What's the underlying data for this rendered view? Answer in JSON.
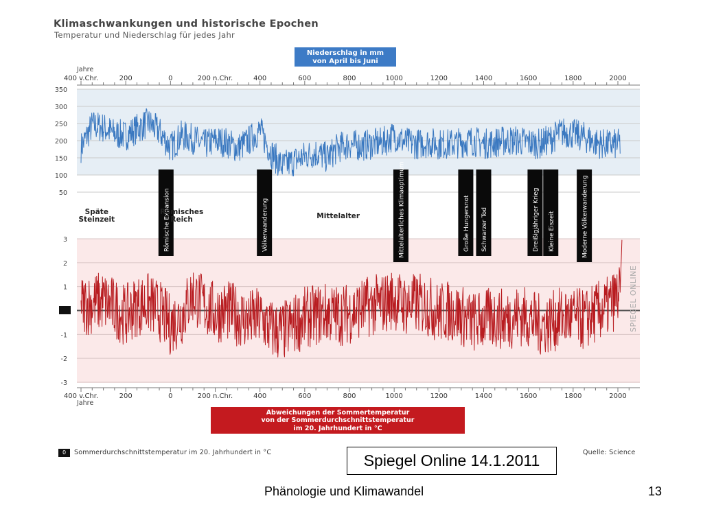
{
  "header": {
    "title": "Klimaschwankungen und historische Epochen",
    "subtitle": "Temperatur und Niederschlag für jedes Jahr"
  },
  "precip_box": {
    "line1": "Niederschlag in mm",
    "line2": "von April bis Juni"
  },
  "temp_box": {
    "line1": "Abweichungen der Sommertemperatur",
    "line2": "von der Sommerdurchschnittstemperatur",
    "line3": "im 20. Jahrhundert in °C"
  },
  "axis": {
    "year_label": "Jahre",
    "year_ticks": [
      "400 v.Chr.",
      "200",
      "0",
      "200 n.Chr.",
      "400",
      "600",
      "800",
      "1000",
      "1200",
      "1400",
      "1600",
      "1800",
      "2000"
    ],
    "precip_ticks": [
      "350",
      "300",
      "250",
      "200",
      "150",
      "100",
      "50"
    ],
    "temp_ticks": [
      "3",
      "2",
      "1",
      "0",
      "-1",
      "-2",
      "-3"
    ]
  },
  "epochs": [
    {
      "label": "Späte\nSteinzeit",
      "year": -330
    },
    {
      "label": "Römisches\nReich",
      "year": 50
    },
    {
      "label": "Mittelalter",
      "year": 750
    }
  ],
  "events": [
    {
      "label": "Römische Expansion",
      "year": -20
    },
    {
      "label": "Völkerwanderung",
      "year": 420
    },
    {
      "label": "Mittelalterliches Klimaoptimum",
      "year": 1030
    },
    {
      "label": "Große Hungersnot",
      "year": 1320
    },
    {
      "label": "Schwarzer Tod",
      "year": 1400
    },
    {
      "label": "Dreißigjähriger Krieg",
      "year": 1630
    },
    {
      "label": "Kleine Eiszeit",
      "year": 1700
    },
    {
      "label": "Moderne Völkerwanderung",
      "year": 1850
    }
  ],
  "watermark": "SPIEGEL ONLINE",
  "legend": {
    "box": "0",
    "text": "Sommerdurchschnittstemperatur im 20. Jahrhundert in °C"
  },
  "quelle": "Quelle: Science",
  "slide": {
    "source_note": "Spiegel Online 14.1.2011",
    "footer_title": "Phänologie und Klimawandel",
    "page_number": "13"
  },
  "colors": {
    "precip_line": "#3a78c0",
    "precip_bg": "#e6eef5",
    "temp_line": "#b81c20",
    "temp_bg": "#fbe9e9",
    "precip_label_bg": "#3d7bc6",
    "temp_label_bg": "#c41a1f",
    "event_bar": "#0a0a0a"
  },
  "chart_data": [
    {
      "type": "line",
      "name": "precipitation",
      "title": "Niederschlag in mm von April bis Juni",
      "xlabel": "Jahre",
      "xlim": [
        -400,
        2000
      ],
      "ylim": [
        50,
        350
      ],
      "x_step_years": 10,
      "x": [
        -400,
        -350,
        -300,
        -250,
        -200,
        -150,
        -100,
        -50,
        0,
        50,
        100,
        150,
        200,
        250,
        300,
        350,
        400,
        450,
        500,
        550,
        600,
        650,
        700,
        750,
        800,
        850,
        900,
        950,
        1000,
        1050,
        1100,
        1150,
        1200,
        1250,
        1300,
        1350,
        1400,
        1450,
        1500,
        1550,
        1600,
        1650,
        1700,
        1750,
        1800,
        1850,
        1900,
        1950,
        2000
      ],
      "values": [
        180,
        245,
        238,
        220,
        215,
        235,
        252,
        226,
        180,
        215,
        205,
        188,
        200,
        195,
        178,
        200,
        230,
        165,
        125,
        140,
        155,
        165,
        150,
        180,
        190,
        185,
        190,
        195,
        215,
        195,
        190,
        195,
        190,
        190,
        195,
        200,
        190,
        195,
        200,
        200,
        195,
        190,
        205,
        225,
        220,
        210,
        195,
        188,
        190
      ]
    },
    {
      "type": "line",
      "name": "temperature",
      "title": "Abweichungen der Sommertemperatur von der Sommerdurchschnittstemperatur im 20. Jahrhundert in °C",
      "xlabel": "Jahre",
      "xlim": [
        -400,
        2000
      ],
      "ylim": [
        -3,
        3
      ],
      "x_step_years": 10,
      "x": [
        -400,
        -350,
        -300,
        -250,
        -200,
        -150,
        -100,
        -50,
        0,
        50,
        100,
        150,
        200,
        250,
        300,
        350,
        400,
        450,
        500,
        550,
        600,
        650,
        700,
        750,
        800,
        850,
        900,
        950,
        1000,
        1050,
        1100,
        1150,
        1200,
        1250,
        1300,
        1350,
        1400,
        1450,
        1500,
        1550,
        1600,
        1650,
        1700,
        1750,
        1800,
        1850,
        1900,
        1950,
        2000
      ],
      "values": [
        0.2,
        0.3,
        0.4,
        0.1,
        -0.2,
        0.2,
        0.3,
        0.0,
        -0.6,
        -0.2,
        0.7,
        0.2,
        -0.1,
        0.0,
        -0.2,
        -0.4,
        -0.3,
        -0.8,
        -0.9,
        -0.6,
        -0.3,
        -0.2,
        -0.1,
        -0.2,
        -0.1,
        0.1,
        0.2,
        0.3,
        0.5,
        0.2,
        0.3,
        0.2,
        -0.1,
        0.0,
        -0.2,
        -0.5,
        -0.4,
        -0.3,
        -0.4,
        -0.2,
        -0.3,
        -0.6,
        -0.5,
        -0.3,
        -0.3,
        -0.4,
        -0.1,
        0.1,
        0.6
      ]
    }
  ]
}
